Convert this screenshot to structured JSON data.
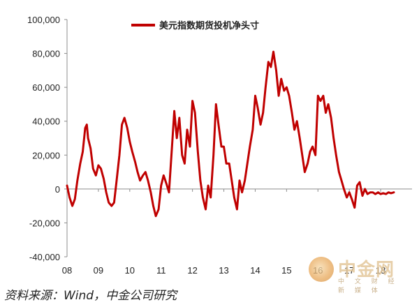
{
  "chart_data": {
    "type": "line",
    "title": "",
    "xlabel": "",
    "ylabel": "",
    "ylim": [
      -40000,
      100000
    ],
    "yticks": [
      "100,000",
      "80,000",
      "60,000",
      "40,000",
      "20,000",
      "0",
      "-20,000",
      "-40,000"
    ],
    "ytick_values": [
      100000,
      80000,
      60000,
      40000,
      20000,
      0,
      -20000,
      -40000
    ],
    "xlim": [
      2008.0,
      2019.0
    ],
    "xticks": [
      "08",
      "09",
      "10",
      "11",
      "12",
      "13",
      "14",
      "15",
      "16",
      "17",
      "18"
    ],
    "xtick_values": [
      2008,
      2009,
      2010,
      2011,
      2012,
      2013,
      2014,
      2015,
      2016,
      2017,
      2018
    ],
    "grid": false,
    "legend": "top",
    "series": [
      {
        "name": "美元指数期货投机净头寸",
        "color": "#c00000",
        "x": [
          2008.0,
          2008.08,
          2008.17,
          2008.25,
          2008.33,
          2008.42,
          2008.5,
          2008.58,
          2008.63,
          2008.67,
          2008.75,
          2008.83,
          2008.92,
          2009.0,
          2009.08,
          2009.17,
          2009.25,
          2009.33,
          2009.42,
          2009.5,
          2009.58,
          2009.67,
          2009.75,
          2009.83,
          2009.92,
          2010.0,
          2010.08,
          2010.17,
          2010.25,
          2010.33,
          2010.42,
          2010.5,
          2010.58,
          2010.67,
          2010.75,
          2010.83,
          2010.92,
          2011.0,
          2011.08,
          2011.17,
          2011.25,
          2011.33,
          2011.42,
          2011.5,
          2011.58,
          2011.67,
          2011.75,
          2011.83,
          2011.92,
          2012.0,
          2012.08,
          2012.17,
          2012.25,
          2012.33,
          2012.42,
          2012.5,
          2012.58,
          2012.67,
          2012.75,
          2012.83,
          2012.92,
          2013.0,
          2013.08,
          2013.17,
          2013.25,
          2013.33,
          2013.42,
          2013.5,
          2013.58,
          2013.67,
          2013.75,
          2013.83,
          2013.92,
          2014.0,
          2014.08,
          2014.17,
          2014.25,
          2014.33,
          2014.42,
          2014.5,
          2014.58,
          2014.67,
          2014.75,
          2014.83,
          2014.92,
          2015.0,
          2015.08,
          2015.17,
          2015.25,
          2015.33,
          2015.42,
          2015.5,
          2015.58,
          2015.67,
          2015.75,
          2015.83,
          2015.92,
          2016.0,
          2016.08,
          2016.17,
          2016.25,
          2016.33,
          2016.42,
          2016.5,
          2016.58,
          2016.67,
          2016.75,
          2016.83,
          2016.92,
          2017.0,
          2017.08,
          2017.17,
          2017.25,
          2017.33,
          2017.42,
          2017.5,
          2017.58,
          2017.67,
          2017.75,
          2017.83,
          2017.92,
          2018.0,
          2018.08,
          2018.17,
          2018.25,
          2018.33,
          2018.42
        ],
        "values": [
          2000,
          -5000,
          -10000,
          -6000,
          5000,
          15000,
          22000,
          36000,
          38000,
          30000,
          24000,
          12000,
          8000,
          14000,
          12000,
          6000,
          -2000,
          -8000,
          -10000,
          -8000,
          5000,
          20000,
          38000,
          42000,
          36000,
          28000,
          22000,
          16000,
          10000,
          5000,
          8000,
          10000,
          5000,
          -2000,
          -10000,
          -16000,
          -12000,
          2000,
          8000,
          3000,
          -2000,
          20000,
          46000,
          30000,
          42000,
          20000,
          15000,
          35000,
          25000,
          52000,
          45000,
          22000,
          5000,
          -5000,
          -12000,
          2000,
          -5000,
          20000,
          50000,
          38000,
          25000,
          25000,
          15000,
          15000,
          5000,
          -5000,
          -12000,
          5000,
          -2000,
          5000,
          15000,
          25000,
          35000,
          55000,
          48000,
          38000,
          45000,
          60000,
          75000,
          72000,
          81000,
          70000,
          55000,
          65000,
          58000,
          60000,
          55000,
          45000,
          35000,
          40000,
          30000,
          20000,
          10000,
          15000,
          22000,
          25000,
          20000,
          55000,
          52000,
          55000,
          45000,
          50000,
          42000,
          30000,
          20000,
          10000,
          5000,
          0,
          -5000,
          -2000,
          -6000,
          -11000,
          2000,
          4000,
          -4000,
          0,
          -3000,
          -2000,
          -2000,
          -3000,
          -2000,
          -3000,
          -2500,
          -3000,
          -2000,
          -2500,
          -2000
        ]
      }
    ]
  },
  "source_text": "资料来源：Wind，中金公司研究",
  "watermark": {
    "main": "中金网",
    "sub": "中 文 财 经 新 媒 体"
  }
}
